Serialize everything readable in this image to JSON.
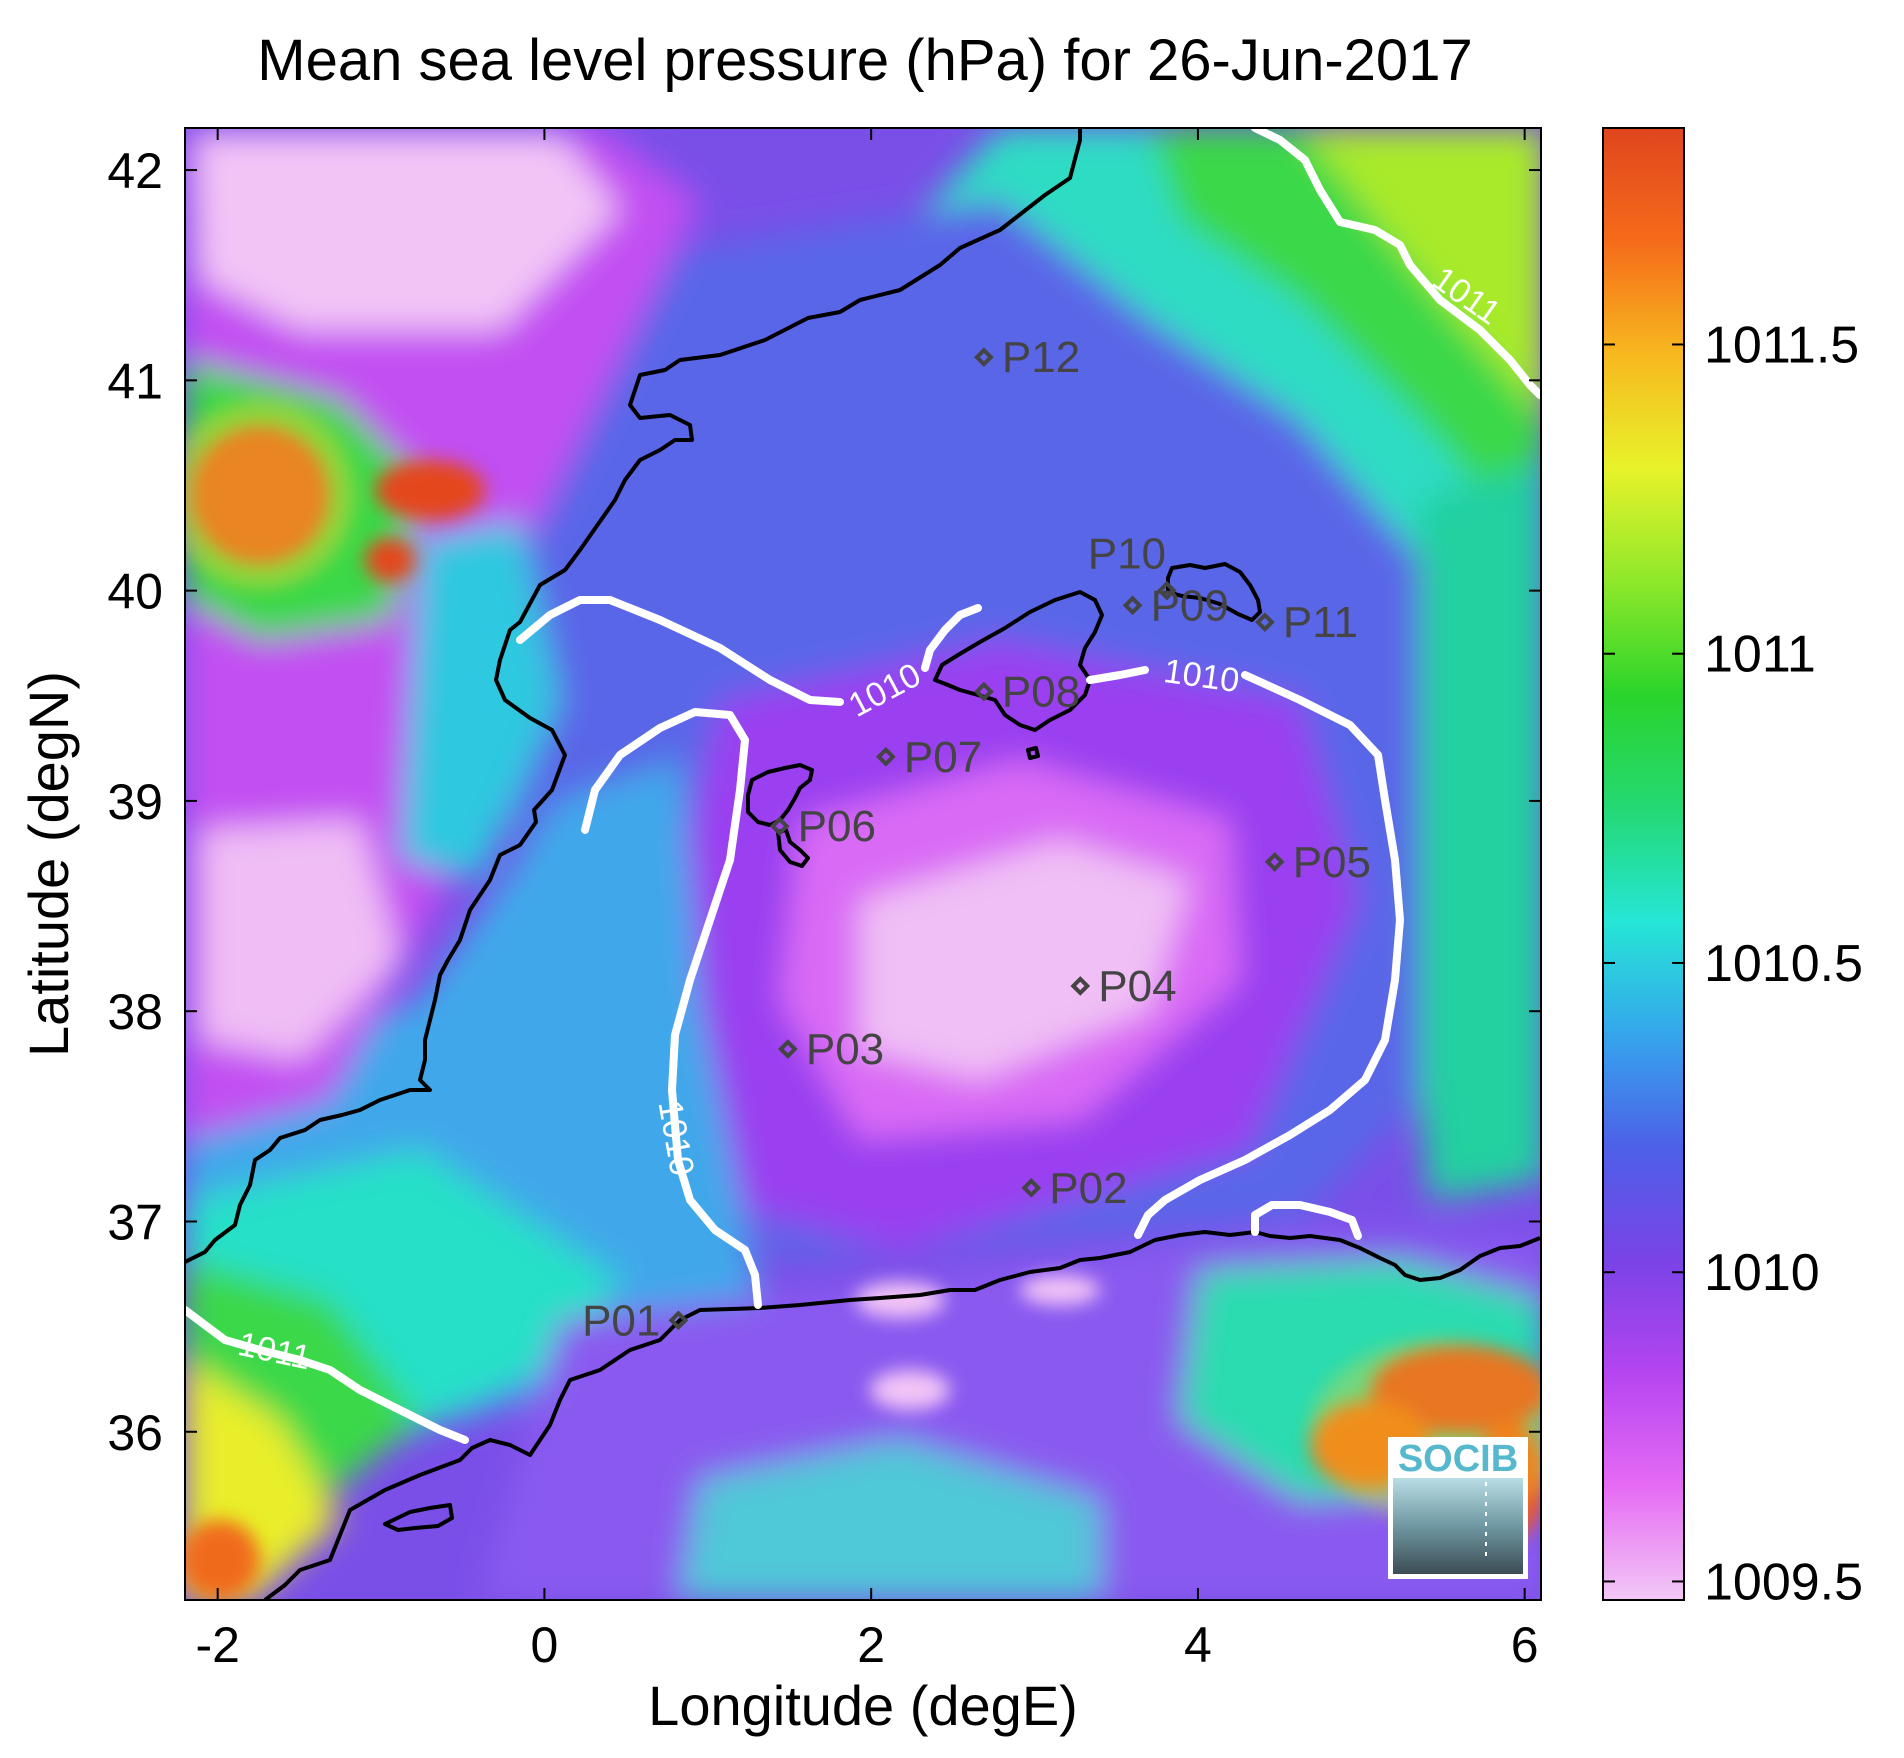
{
  "title": "Mean sea level pressure (hPa) for 26-Jun-2017",
  "axes": {
    "xlabel": "Longitude (degE)",
    "ylabel": "Latitude (degN)",
    "xlim": [
      -2.2,
      6.1
    ],
    "ylim": [
      35.2,
      42.2
    ],
    "xticks": [
      -2,
      0,
      2,
      4,
      6
    ],
    "yticks": [
      36,
      37,
      38,
      39,
      40,
      41,
      42
    ]
  },
  "colorbar": {
    "range": [
      1009.47,
      1011.85
    ],
    "ticks": [
      1009.5,
      1010,
      1010.5,
      1011,
      1011.5
    ],
    "tick_labels": [
      "1009.5",
      "1010",
      "1010.5",
      "1011",
      "1011.5"
    ],
    "colormap": [
      "#f2c8f5",
      "#e66bf4",
      "#b545f0",
      "#7a43e6",
      "#4d60e8",
      "#35a6ec",
      "#25e6d6",
      "#24d973",
      "#2bd42b",
      "#8fe82a",
      "#e8f22a",
      "#f7b81f",
      "#f56b1a",
      "#e0461e"
    ]
  },
  "contours": [
    {
      "label": "1010"
    },
    {
      "label": "1010"
    },
    {
      "label": "1011"
    },
    {
      "label": "1011"
    }
  ],
  "stations": [
    {
      "name": "P01",
      "lon": 0.82,
      "lat": 36.53
    },
    {
      "name": "P02",
      "lon": 2.98,
      "lat": 37.16
    },
    {
      "name": "P03",
      "lon": 1.49,
      "lat": 37.82
    },
    {
      "name": "P04",
      "lon": 3.28,
      "lat": 38.12
    },
    {
      "name": "P05",
      "lon": 4.47,
      "lat": 38.71
    },
    {
      "name": "P06",
      "lon": 1.44,
      "lat": 38.88
    },
    {
      "name": "P07",
      "lon": 2.09,
      "lat": 39.21
    },
    {
      "name": "P08",
      "lon": 2.69,
      "lat": 39.52
    },
    {
      "name": "P09",
      "lon": 3.6,
      "lat": 39.93
    },
    {
      "name": "P10",
      "lon": 3.81,
      "lat": 40.0
    },
    {
      "name": "P11",
      "lon": 4.41,
      "lat": 39.85
    },
    {
      "name": "P12",
      "lon": 2.69,
      "lat": 41.11
    }
  ],
  "logo": {
    "text": "SOCIB"
  }
}
